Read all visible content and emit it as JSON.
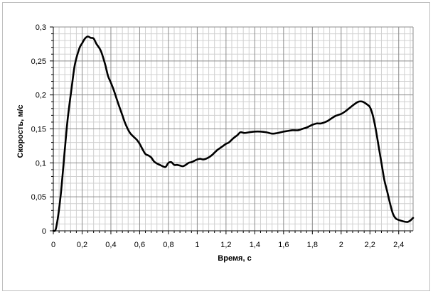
{
  "chart_data": {
    "type": "line",
    "title": "",
    "xlabel": "Время, с",
    "ylabel": "Скорость, м/с",
    "xlim": [
      0,
      2.5
    ],
    "ylim": [
      0,
      0.3
    ],
    "x_major_ticks": [
      0,
      0.2,
      0.4,
      0.6,
      0.8,
      1,
      1.2,
      1.4,
      1.6,
      1.8,
      2,
      2.2,
      2.4
    ],
    "x_tick_labels": [
      "0",
      "0,2",
      "0,4",
      "0,6",
      "0,8",
      "1",
      "1,2",
      "1,4",
      "1,6",
      "1,8",
      "2",
      "2,2",
      "2,4"
    ],
    "y_major_ticks": [
      0,
      0.05,
      0.1,
      0.15,
      0.2,
      0.25,
      0.3
    ],
    "y_tick_labels": [
      "0",
      "0,05",
      "0,1",
      "0,15",
      "0,2",
      "0,25",
      "0,3"
    ],
    "grid": true,
    "legend": "none",
    "colors": {
      "line": "#000000",
      "major_grid": "#8c8c8c",
      "minor_grid": "#d0d0d0",
      "frame": "#bfbfbf"
    },
    "series": [
      {
        "x": [
          0,
          0.02,
          0.05,
          0.08,
          0.1,
          0.13,
          0.15,
          0.18,
          0.2,
          0.22,
          0.24,
          0.26,
          0.28,
          0.3,
          0.33,
          0.36,
          0.38,
          0.4,
          0.42,
          0.45,
          0.48,
          0.5,
          0.53,
          0.56,
          0.58,
          0.6,
          0.62,
          0.64,
          0.66,
          0.68,
          0.7,
          0.72,
          0.74,
          0.76,
          0.78,
          0.8,
          0.82,
          0.84,
          0.86,
          0.88,
          0.9,
          0.92,
          0.94,
          0.96,
          0.98,
          1.0,
          1.02,
          1.04,
          1.06,
          1.08,
          1.1,
          1.12,
          1.14,
          1.16,
          1.18,
          1.2,
          1.22,
          1.25,
          1.28,
          1.3,
          1.33,
          1.36,
          1.4,
          1.44,
          1.48,
          1.52,
          1.56,
          1.6,
          1.63,
          1.66,
          1.7,
          1.73,
          1.76,
          1.8,
          1.83,
          1.86,
          1.9,
          1.93,
          1.96,
          2.0,
          2.03,
          2.06,
          2.09,
          2.12,
          2.15,
          2.18,
          2.2,
          2.22,
          2.24,
          2.26,
          2.28,
          2.3,
          2.32,
          2.34,
          2.36,
          2.38,
          2.4,
          2.43,
          2.46,
          2.48,
          2.5
        ],
        "y": [
          0.0,
          0.005,
          0.05,
          0.12,
          0.165,
          0.215,
          0.245,
          0.268,
          0.276,
          0.283,
          0.286,
          0.284,
          0.283,
          0.275,
          0.265,
          0.245,
          0.228,
          0.218,
          0.207,
          0.188,
          0.17,
          0.158,
          0.145,
          0.138,
          0.134,
          0.128,
          0.12,
          0.113,
          0.111,
          0.108,
          0.102,
          0.099,
          0.097,
          0.095,
          0.094,
          0.1,
          0.101,
          0.097,
          0.097,
          0.096,
          0.095,
          0.097,
          0.1,
          0.101,
          0.103,
          0.105,
          0.106,
          0.105,
          0.106,
          0.108,
          0.111,
          0.115,
          0.119,
          0.122,
          0.125,
          0.128,
          0.13,
          0.136,
          0.141,
          0.145,
          0.144,
          0.145,
          0.146,
          0.146,
          0.145,
          0.143,
          0.144,
          0.146,
          0.147,
          0.148,
          0.148,
          0.15,
          0.152,
          0.156,
          0.158,
          0.158,
          0.161,
          0.165,
          0.169,
          0.172,
          0.176,
          0.181,
          0.186,
          0.19,
          0.19,
          0.186,
          0.182,
          0.17,
          0.15,
          0.125,
          0.1,
          0.075,
          0.058,
          0.04,
          0.025,
          0.018,
          0.016,
          0.014,
          0.013,
          0.015,
          0.019
        ]
      }
    ]
  }
}
